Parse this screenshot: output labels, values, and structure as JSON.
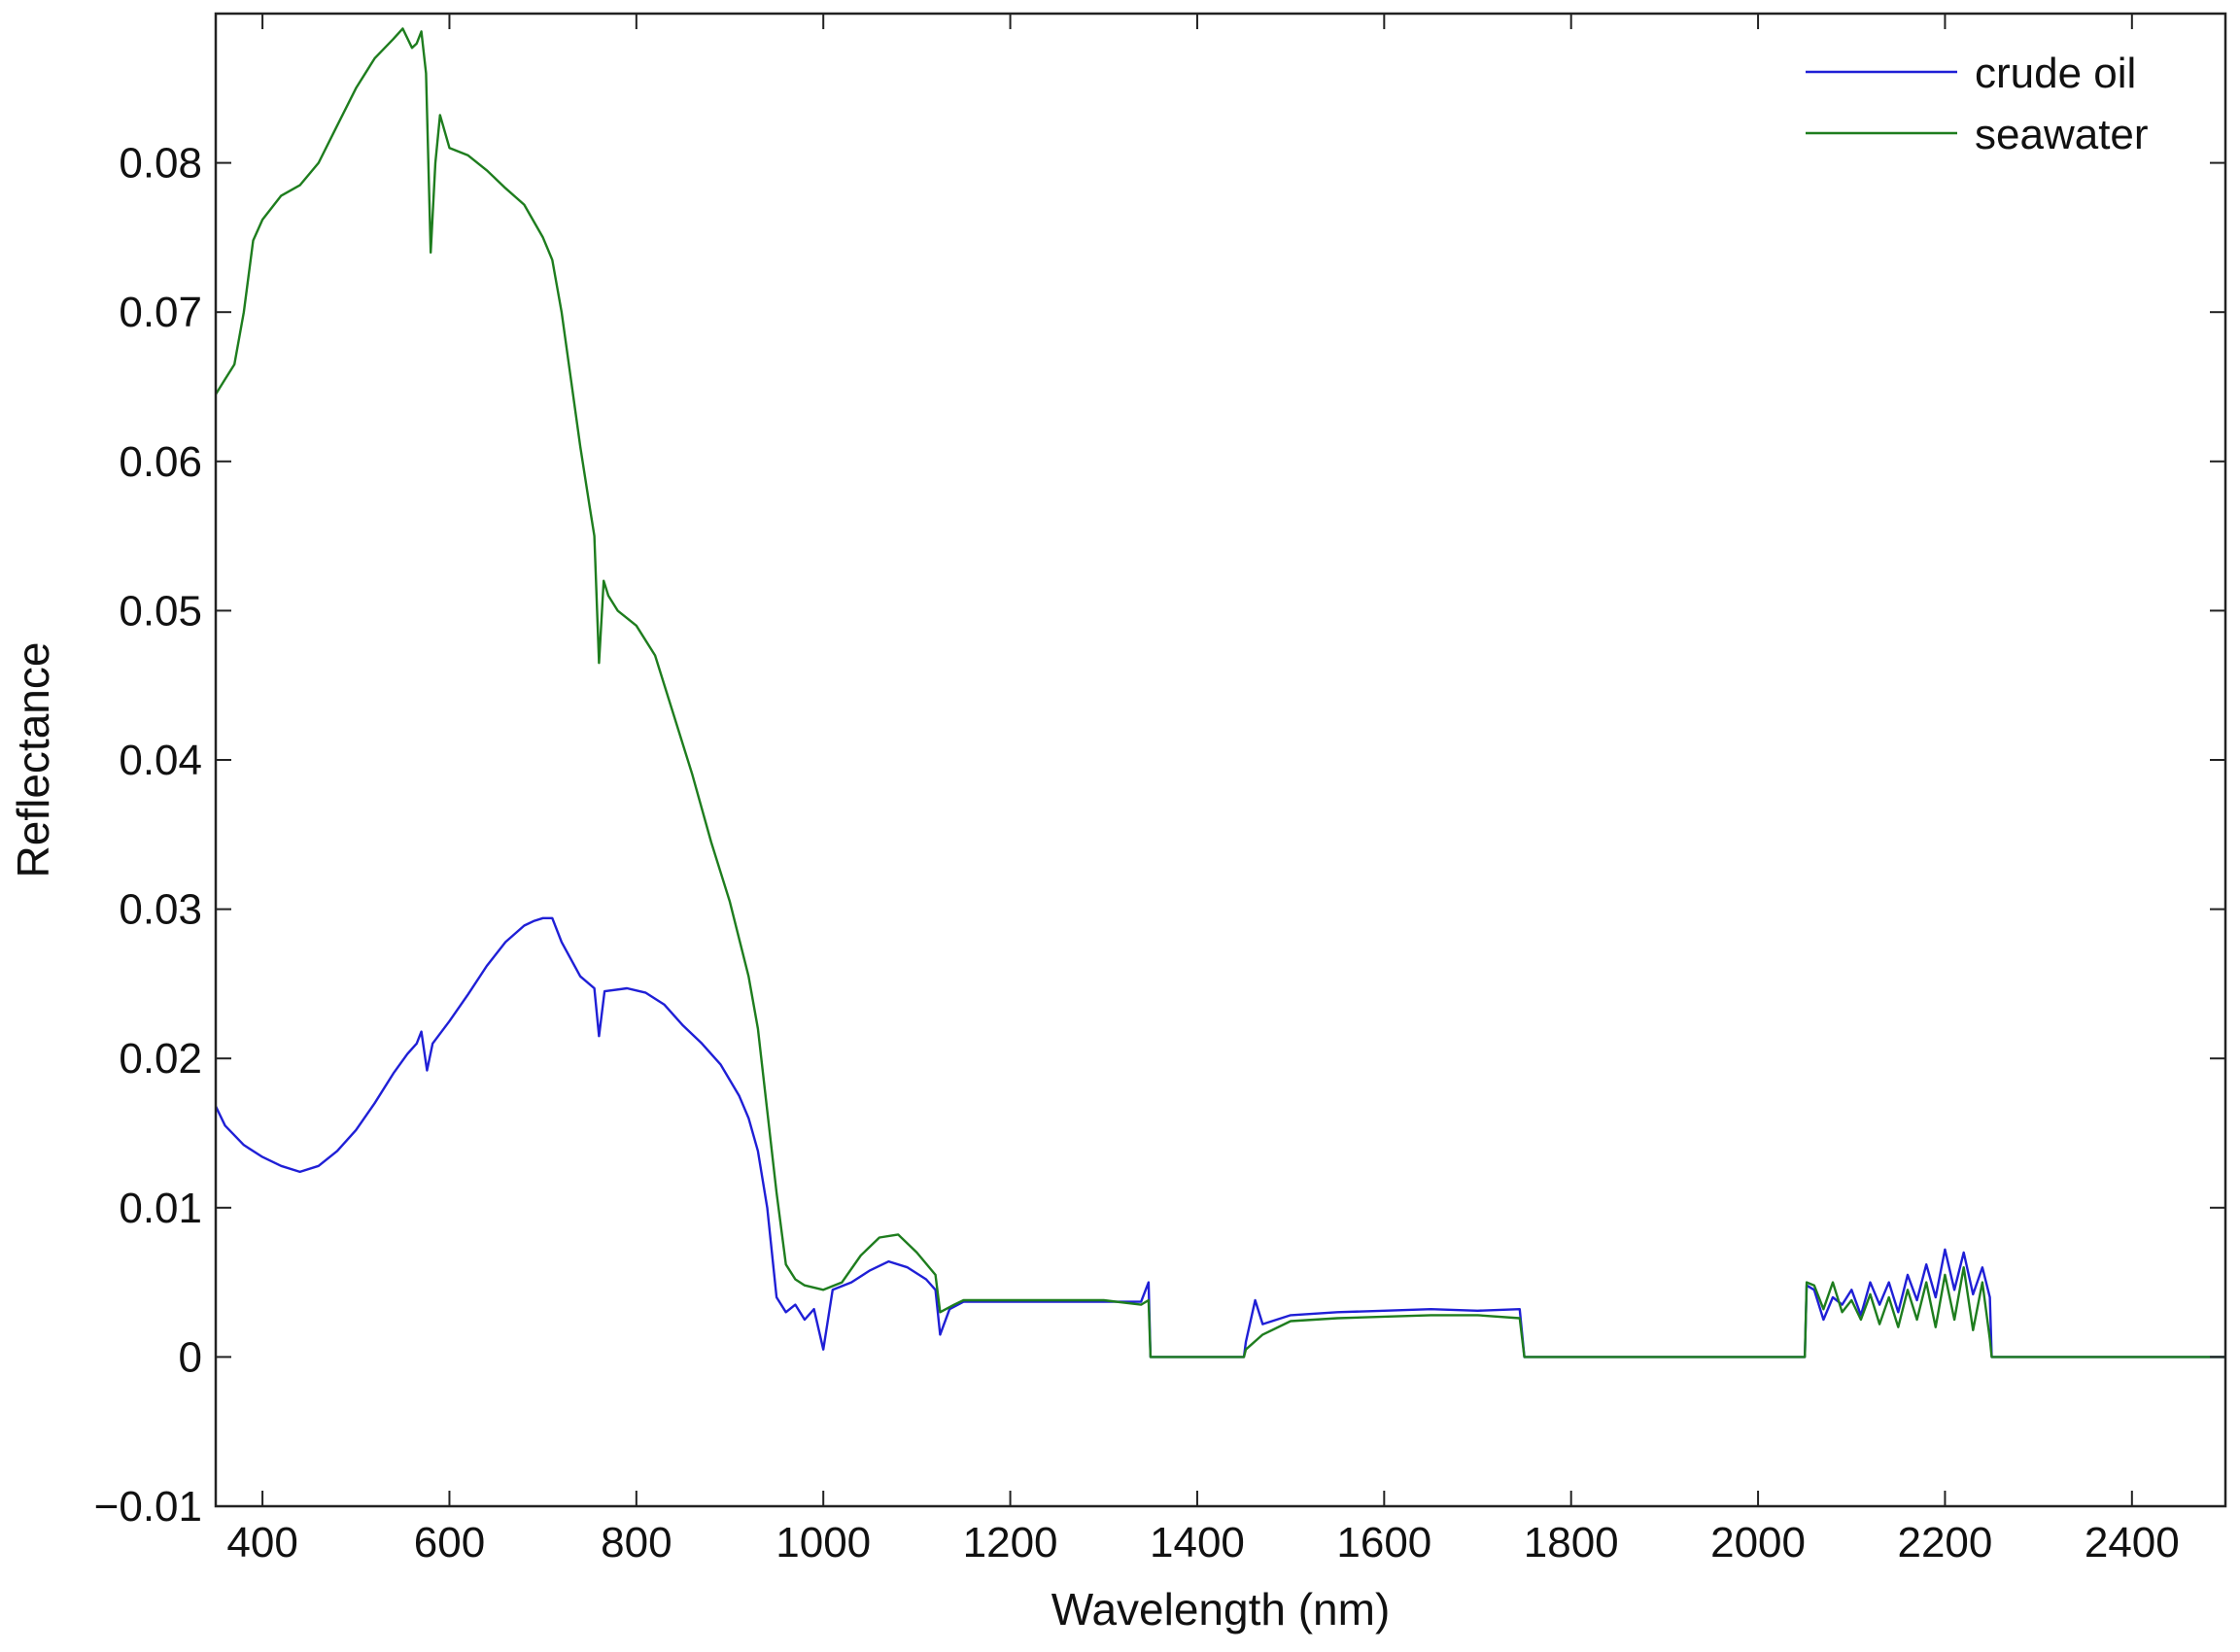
{
  "chart_data": {
    "type": "line",
    "title": "",
    "xlabel": "Wavelength (nm)",
    "ylabel": "Reflectance",
    "xlim": [
      350,
      2500
    ],
    "ylim": [
      -0.01,
      0.09
    ],
    "xticks": [
      400,
      600,
      800,
      1000,
      1200,
      1400,
      1600,
      1800,
      2000,
      2200,
      2400
    ],
    "yticks": [
      -0.01,
      0,
      0.01,
      0.02,
      0.03,
      0.04,
      0.05,
      0.06,
      0.07,
      0.08
    ],
    "xtick_labels": [
      "400",
      "600",
      "800",
      "1000",
      "1200",
      "1400",
      "1600",
      "1800",
      "2000",
      "2200",
      "2400"
    ],
    "ytick_labels": [
      "−0.01",
      "0",
      "0.01",
      "0.02",
      "0.03",
      "0.04",
      "0.05",
      "0.06",
      "0.07",
      "0.08"
    ],
    "grid": false,
    "legend_position": "top-right",
    "series": [
      {
        "name": "crude oil",
        "color": "#1f1fd6",
        "points": [
          [
            350,
            0.0168
          ],
          [
            360,
            0.0155
          ],
          [
            380,
            0.0142
          ],
          [
            400,
            0.0134
          ],
          [
            420,
            0.0128
          ],
          [
            440,
            0.0124
          ],
          [
            460,
            0.0128
          ],
          [
            480,
            0.0138
          ],
          [
            500,
            0.0152
          ],
          [
            520,
            0.017
          ],
          [
            540,
            0.019
          ],
          [
            555,
            0.0203
          ],
          [
            565,
            0.021
          ],
          [
            570,
            0.0218
          ],
          [
            576,
            0.0192
          ],
          [
            582,
            0.021
          ],
          [
            600,
            0.0225
          ],
          [
            620,
            0.0243
          ],
          [
            640,
            0.0262
          ],
          [
            660,
            0.0278
          ],
          [
            680,
            0.0289
          ],
          [
            690,
            0.0292
          ],
          [
            700,
            0.0294
          ],
          [
            710,
            0.0294
          ],
          [
            720,
            0.0278
          ],
          [
            740,
            0.0255
          ],
          [
            755,
            0.0247
          ],
          [
            760,
            0.0215
          ],
          [
            766,
            0.0245
          ],
          [
            790,
            0.0247
          ],
          [
            810,
            0.0244
          ],
          [
            830,
            0.0236
          ],
          [
            850,
            0.0222
          ],
          [
            870,
            0.021
          ],
          [
            890,
            0.0196
          ],
          [
            910,
            0.0175
          ],
          [
            920,
            0.016
          ],
          [
            930,
            0.0138
          ],
          [
            940,
            0.01
          ],
          [
            950,
            0.004
          ],
          [
            960,
            0.003
          ],
          [
            970,
            0.0035
          ],
          [
            980,
            0.0025
          ],
          [
            990,
            0.0032
          ],
          [
            1000,
            0.0005
          ],
          [
            1010,
            0.0045
          ],
          [
            1030,
            0.005
          ],
          [
            1050,
            0.0058
          ],
          [
            1070,
            0.0064
          ],
          [
            1090,
            0.006
          ],
          [
            1110,
            0.0052
          ],
          [
            1120,
            0.0045
          ],
          [
            1125,
            0.0015
          ],
          [
            1135,
            0.0032
          ],
          [
            1150,
            0.0037
          ],
          [
            1200,
            0.0037
          ],
          [
            1250,
            0.0037
          ],
          [
            1300,
            0.0037
          ],
          [
            1340,
            0.0037
          ],
          [
            1348,
            0.005
          ],
          [
            1350,
            0.0
          ],
          [
            1450,
            0.0
          ],
          [
            1452,
            0.001
          ],
          [
            1462,
            0.0038
          ],
          [
            1470,
            0.0022
          ],
          [
            1500,
            0.0028
          ],
          [
            1550,
            0.003
          ],
          [
            1600,
            0.0031
          ],
          [
            1650,
            0.0032
          ],
          [
            1700,
            0.0031
          ],
          [
            1745,
            0.0032
          ],
          [
            1750,
            0.0
          ],
          [
            2050,
            0.0
          ],
          [
            2052,
            0.0048
          ],
          [
            2060,
            0.0045
          ],
          [
            2070,
            0.0025
          ],
          [
            2080,
            0.004
          ],
          [
            2090,
            0.0035
          ],
          [
            2100,
            0.0045
          ],
          [
            2110,
            0.0028
          ],
          [
            2120,
            0.005
          ],
          [
            2130,
            0.0035
          ],
          [
            2140,
            0.005
          ],
          [
            2150,
            0.003
          ],
          [
            2160,
            0.0055
          ],
          [
            2170,
            0.0038
          ],
          [
            2180,
            0.0062
          ],
          [
            2190,
            0.004
          ],
          [
            2200,
            0.0072
          ],
          [
            2210,
            0.0045
          ],
          [
            2220,
            0.007
          ],
          [
            2230,
            0.0042
          ],
          [
            2240,
            0.006
          ],
          [
            2248,
            0.004
          ],
          [
            2250,
            0.0
          ],
          [
            2500,
            0.0
          ]
        ]
      },
      {
        "name": "seawater",
        "color": "#1e7d1e",
        "points": [
          [
            350,
            0.0645
          ],
          [
            360,
            0.0655
          ],
          [
            370,
            0.0665
          ],
          [
            380,
            0.07
          ],
          [
            390,
            0.0748
          ],
          [
            400,
            0.0762
          ],
          [
            420,
            0.0778
          ],
          [
            440,
            0.0785
          ],
          [
            460,
            0.08
          ],
          [
            480,
            0.0825
          ],
          [
            500,
            0.085
          ],
          [
            520,
            0.087
          ],
          [
            540,
            0.0883
          ],
          [
            550,
            0.089
          ],
          [
            560,
            0.0877
          ],
          [
            565,
            0.088
          ],
          [
            570,
            0.0888
          ],
          [
            575,
            0.086
          ],
          [
            580,
            0.074
          ],
          [
            585,
            0.08
          ],
          [
            590,
            0.0832
          ],
          [
            600,
            0.081
          ],
          [
            620,
            0.0805
          ],
          [
            640,
            0.0795
          ],
          [
            660,
            0.0783
          ],
          [
            680,
            0.0772
          ],
          [
            700,
            0.075
          ],
          [
            710,
            0.0735
          ],
          [
            720,
            0.07
          ],
          [
            740,
            0.061
          ],
          [
            750,
            0.057
          ],
          [
            755,
            0.055
          ],
          [
            760,
            0.0465
          ],
          [
            765,
            0.052
          ],
          [
            770,
            0.051
          ],
          [
            780,
            0.05
          ],
          [
            800,
            0.049
          ],
          [
            820,
            0.047
          ],
          [
            840,
            0.043
          ],
          [
            860,
            0.039
          ],
          [
            880,
            0.0345
          ],
          [
            900,
            0.0305
          ],
          [
            920,
            0.0255
          ],
          [
            930,
            0.022
          ],
          [
            940,
            0.0165
          ],
          [
            950,
            0.011
          ],
          [
            960,
            0.0062
          ],
          [
            970,
            0.0052
          ],
          [
            980,
            0.0048
          ],
          [
            1000,
            0.0045
          ],
          [
            1020,
            0.005
          ],
          [
            1040,
            0.0068
          ],
          [
            1060,
            0.008
          ],
          [
            1080,
            0.0082
          ],
          [
            1100,
            0.007
          ],
          [
            1120,
            0.0055
          ],
          [
            1125,
            0.003
          ],
          [
            1140,
            0.0035
          ],
          [
            1150,
            0.0038
          ],
          [
            1200,
            0.0038
          ],
          [
            1250,
            0.0038
          ],
          [
            1300,
            0.0038
          ],
          [
            1340,
            0.0035
          ],
          [
            1348,
            0.0038
          ],
          [
            1350,
            0.0
          ],
          [
            1450,
            0.0
          ],
          [
            1452,
            0.0005
          ],
          [
            1470,
            0.0015
          ],
          [
            1500,
            0.0024
          ],
          [
            1550,
            0.0026
          ],
          [
            1600,
            0.0027
          ],
          [
            1650,
            0.0028
          ],
          [
            1700,
            0.0028
          ],
          [
            1745,
            0.0026
          ],
          [
            1750,
            0.0
          ],
          [
            2050,
            0.0
          ],
          [
            2052,
            0.005
          ],
          [
            2060,
            0.0048
          ],
          [
            2070,
            0.0032
          ],
          [
            2080,
            0.005
          ],
          [
            2090,
            0.003
          ],
          [
            2100,
            0.0038
          ],
          [
            2110,
            0.0025
          ],
          [
            2120,
            0.0042
          ],
          [
            2130,
            0.0022
          ],
          [
            2140,
            0.004
          ],
          [
            2150,
            0.002
          ],
          [
            2160,
            0.0045
          ],
          [
            2170,
            0.0025
          ],
          [
            2180,
            0.005
          ],
          [
            2190,
            0.002
          ],
          [
            2200,
            0.0055
          ],
          [
            2210,
            0.0025
          ],
          [
            2220,
            0.006
          ],
          [
            2230,
            0.0018
          ],
          [
            2240,
            0.005
          ],
          [
            2248,
            0.0012
          ],
          [
            2250,
            0.0
          ],
          [
            2500,
            0.0
          ]
        ]
      }
    ]
  }
}
